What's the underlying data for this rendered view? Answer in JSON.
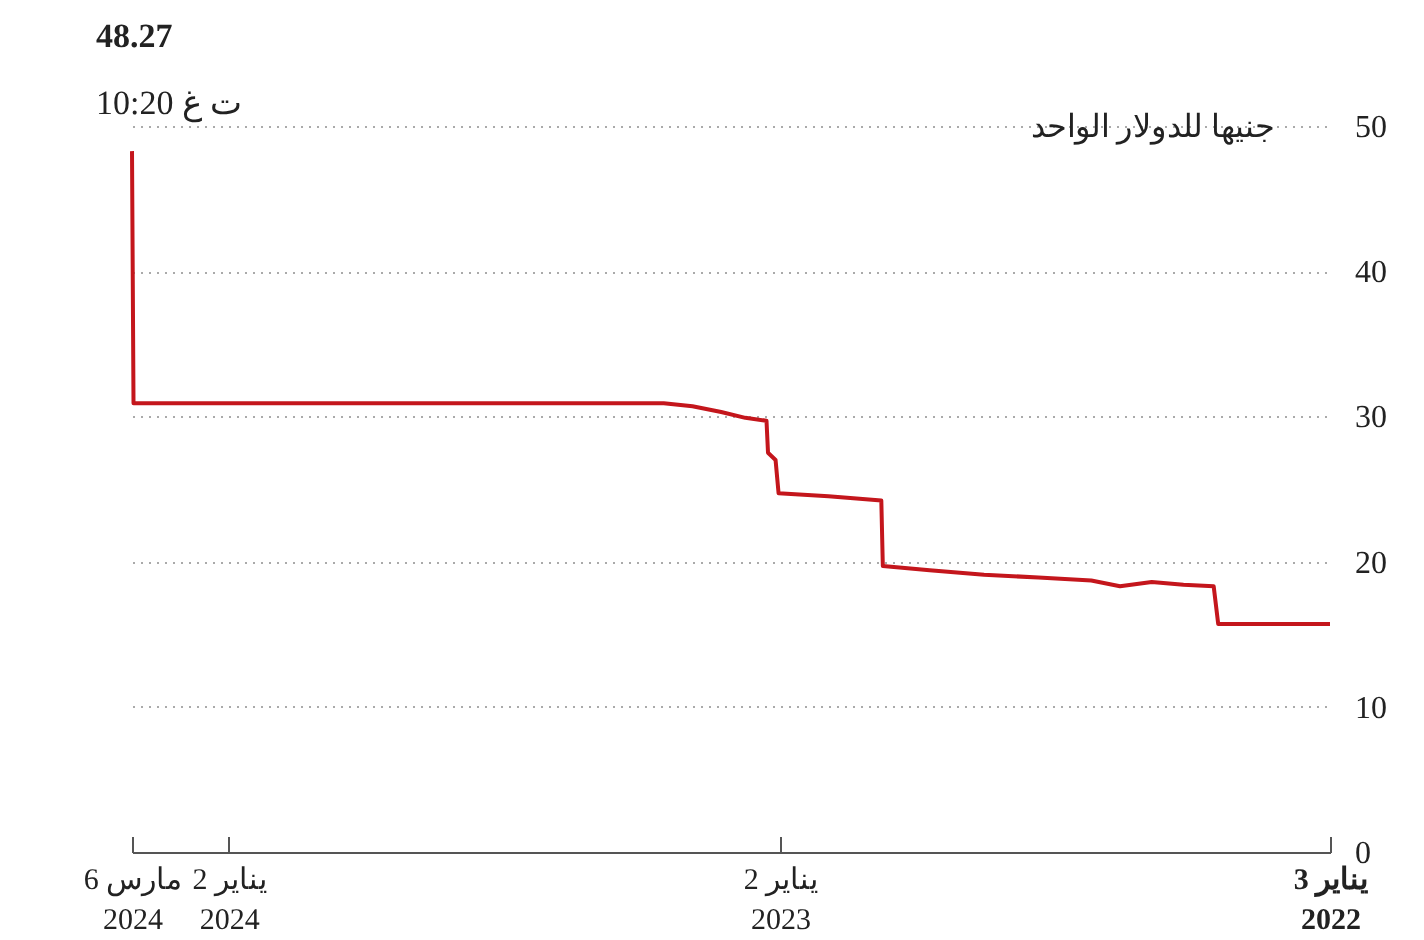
{
  "chart_data": {
    "type": "line",
    "ylabel": "جنيها للدولار الواحد",
    "annotations": [
      {
        "text": "48.27",
        "x": "2024-03-06",
        "y": 48.27
      },
      "10:20 ت غ"
    ],
    "x": [
      "2022-01-03",
      "2022-03-18",
      "2022-03-21",
      "2022-04-10",
      "2022-05-01",
      "2022-05-22",
      "2022-06-10",
      "2022-07-15",
      "2022-08-20",
      "2022-09-25",
      "2022-10-26",
      "2022-10-27",
      "2022-12-01",
      "2023-01-03",
      "2023-01-05",
      "2023-01-10",
      "2023-01-11",
      "2023-01-25",
      "2023-02-10",
      "2023-03-01",
      "2023-03-20",
      "2023-06-01",
      "2023-09-01",
      "2024-01-01",
      "2024-03-05",
      "2024-03-06"
    ],
    "series": [
      {
        "color": "#c4161c",
        "values": [
          15.7,
          15.7,
          18.3,
          18.4,
          18.6,
          18.3,
          18.7,
          18.9,
          19.1,
          19.4,
          19.7,
          24.2,
          24.5,
          24.7,
          27.0,
          27.5,
          29.7,
          29.9,
          30.3,
          30.7,
          30.9,
          30.9,
          30.9,
          30.9,
          30.9,
          48.27
        ]
      }
    ],
    "xlim": [
      "2024-03-06",
      "2022-01-03"
    ],
    "xticks": [
      {
        "value": "2024-03-06",
        "label": "6 مارس 2024"
      },
      {
        "value": "2024-01-02",
        "label": "2 يناير 2024"
      },
      {
        "value": "2023-01-02",
        "label": "2 يناير 2023"
      },
      {
        "value": "2022-01-03",
        "label": "3 يناير 2022"
      }
    ],
    "ylim": [
      0,
      50
    ],
    "yticks": [
      0,
      10,
      20,
      30,
      40,
      50
    ],
    "grid": "y",
    "line_style": "solid",
    "marker": "none"
  }
}
